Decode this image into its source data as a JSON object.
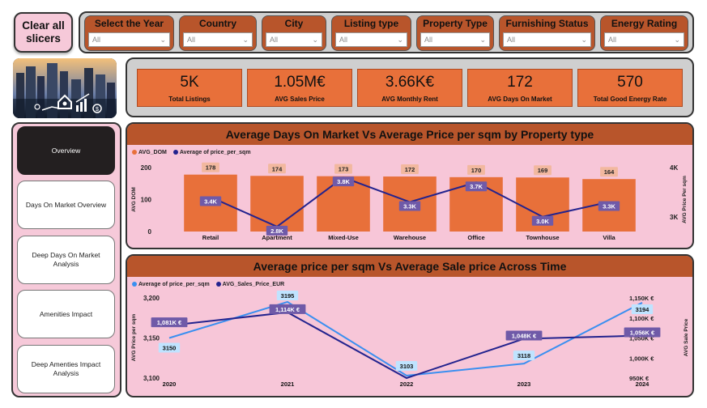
{
  "clear_slicers_label": "Clear all slicers",
  "slicers": [
    {
      "title": "Select the Year",
      "value": "All"
    },
    {
      "title": "Country",
      "value": "All"
    },
    {
      "title": "City",
      "value": "All"
    },
    {
      "title": "Listing type",
      "value": "All"
    },
    {
      "title": "Property Type",
      "value": "All"
    },
    {
      "title": "Furnishing Status",
      "value": "All"
    },
    {
      "title": "Energy Rating",
      "value": "All"
    }
  ],
  "kpis": [
    {
      "value": "5K",
      "label": "Total Listings"
    },
    {
      "value": "1.05M€",
      "label": "AVG Sales Price"
    },
    {
      "value": "3.66K€",
      "label": "AVG Monthly Rent"
    },
    {
      "value": "172",
      "label": "AVG Days On Market"
    },
    {
      "value": "570",
      "label": "Total Good Energy Rate"
    }
  ],
  "nav": [
    {
      "label": "Overview",
      "active": true
    },
    {
      "label": "Days On Market Overview"
    },
    {
      "label": "Deep Days On Market Analysis"
    },
    {
      "label": "Amenities Impact"
    },
    {
      "label": "Deep Amenties Impact Analysis"
    }
  ],
  "colors": {
    "orange": "#e8703a",
    "navy": "#23238e",
    "light_blue": "#3a8ff0",
    "pink": "#f7c6d8",
    "brown": "#b8552b"
  },
  "chart_data": [
    {
      "type": "bar",
      "title": "Average Days On Market Vs Average Price per sqm by Property type",
      "categories": [
        "Retail",
        "Apartment",
        "Mixed-Use",
        "Warehouse",
        "Office",
        "Townhouse",
        "Villa"
      ],
      "series": [
        {
          "name": "AVG_DOM",
          "type": "bar",
          "values": [
            178,
            174,
            173,
            172,
            170,
            169,
            164
          ],
          "labels": [
            "178",
            "174",
            "173",
            "172",
            "170",
            "169",
            "164"
          ]
        },
        {
          "name": "Average of price_per_sqm",
          "type": "line",
          "values": [
            3400,
            2800,
            3800,
            3300,
            3700,
            3000,
            3300
          ],
          "labels": [
            "3.4K",
            "2.8K",
            "3.8K",
            "3.3K",
            "3.7K",
            "3.0K",
            "3.3K"
          ]
        }
      ],
      "ylabel": "AVG DOM",
      "y2label": "AVG Price Per sqm",
      "yticks": [
        "0",
        "100",
        "200"
      ],
      "y2ticks": [
        "4K",
        "3K"
      ],
      "ylim": [
        0,
        200
      ],
      "y2lim": [
        2700,
        4000
      ]
    },
    {
      "type": "line",
      "title": "Average price per sqm Vs Average Sale price Across Time",
      "x": [
        "2020",
        "2021",
        "2022",
        "2023",
        "2024"
      ],
      "series": [
        {
          "name": "Average of price_per_sqm",
          "values": [
            3150,
            3195,
            3103,
            3118,
            3194
          ],
          "labels": [
            "3150",
            "3195",
            "3103",
            "3118",
            "3194"
          ]
        },
        {
          "name": "AVG_Sales_Price_EUR",
          "values": [
            1081000,
            1114000,
            950000,
            1048000,
            1056000
          ],
          "labels": [
            "1,081K €",
            "1,114K €",
            "",
            "1,048K €",
            "1,056K €"
          ]
        }
      ],
      "ylabel": "AVG Price per sqm",
      "y2label": "AVG Sale Price",
      "yticks": [
        "3,200",
        "3,150",
        "3,100"
      ],
      "y2ticks": [
        "1,150K €",
        "1,100K €",
        "1,050K €",
        "1,000K €",
        "950K €"
      ],
      "ylim": [
        3100,
        3200
      ],
      "y2lim": [
        950000,
        1150000
      ]
    }
  ]
}
